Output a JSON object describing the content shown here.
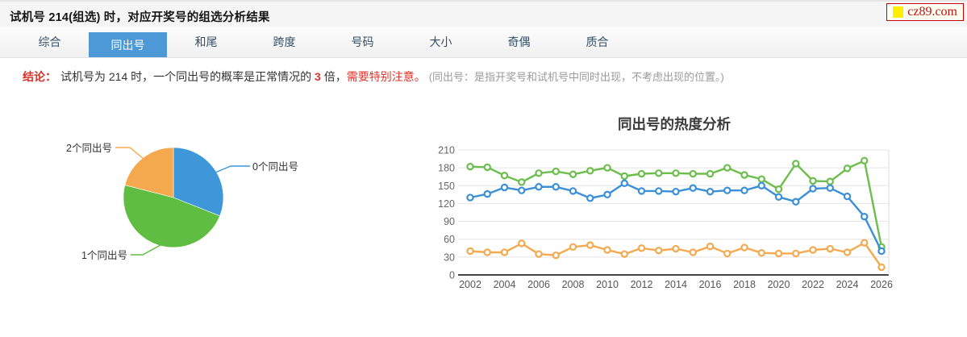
{
  "page": {
    "title": "试机号 214(组选) 时，对应开奖号的组选分析结果"
  },
  "logo": {
    "text": "cz89.com",
    "square_color": "#ffee00",
    "border_color": "#c40000",
    "text_color": "#c01111"
  },
  "tabs": {
    "active_color": "#4d99d8",
    "items": [
      {
        "label": "综合",
        "active": false
      },
      {
        "label": "同出号",
        "active": true
      },
      {
        "label": "和尾",
        "active": false
      },
      {
        "label": "跨度",
        "active": false
      },
      {
        "label": "号码",
        "active": false
      },
      {
        "label": "大小",
        "active": false
      },
      {
        "label": "奇偶",
        "active": false
      },
      {
        "label": "质合",
        "active": false
      }
    ]
  },
  "conclusion": {
    "prefix": "结论：",
    "part1": "试机号为 214 时，一个同出号的概率是正常情况的 ",
    "highlight_number": "3",
    "part2": " 倍，",
    "warning": "需要特别注意。",
    "note": "(同出号：是指开奖号和试机号中同时出现，不考虑出现的位置。)"
  },
  "chart_data": [
    {
      "type": "pie",
      "title": "",
      "labels": [
        "0个同出号",
        "1个同出号",
        "2个同出号"
      ],
      "values": [
        31,
        48,
        21
      ],
      "value_unit": "percent_estimated_from_arc_angles",
      "colors": [
        "#3d97d8",
        "#5fbe41",
        "#f5a94f"
      ],
      "legend_position": "callout-labels"
    },
    {
      "type": "line",
      "title": "同出号的热度分析",
      "x": [
        2002,
        2003,
        2004,
        2005,
        2006,
        2007,
        2008,
        2009,
        2010,
        2011,
        2012,
        2013,
        2014,
        2015,
        2016,
        2017,
        2018,
        2019,
        2020,
        2021,
        2022,
        2023,
        2024,
        2025,
        2026
      ],
      "x_tick_labels": [
        "2002",
        "2004",
        "2006",
        "2008",
        "2010",
        "2012",
        "2014",
        "2016",
        "2018",
        "2020",
        "2022",
        "2024",
        "2026"
      ],
      "y_ticks": [
        0,
        30,
        60,
        90,
        120,
        150,
        180,
        210
      ],
      "ylim": [
        0,
        210
      ],
      "grid": true,
      "legend": "none",
      "series": [
        {
          "name": "green-series",
          "color": "#6cbe4c",
          "values": [
            182,
            181,
            167,
            156,
            171,
            174,
            169,
            175,
            180,
            166,
            170,
            171,
            171,
            170,
            170,
            180,
            168,
            161,
            144,
            187,
            158,
            157,
            179,
            192,
            47
          ]
        },
        {
          "name": "blue-series",
          "color": "#3a8fd6",
          "values": [
            130,
            136,
            147,
            142,
            148,
            148,
            141,
            129,
            135,
            154,
            141,
            141,
            140,
            146,
            140,
            142,
            142,
            150,
            131,
            123,
            145,
            146,
            132,
            98,
            40
          ]
        },
        {
          "name": "orange-series",
          "color": "#f5a94f",
          "values": [
            40,
            38,
            38,
            53,
            35,
            33,
            47,
            50,
            42,
            35,
            45,
            41,
            44,
            38,
            48,
            36,
            46,
            37,
            36,
            36,
            42,
            44,
            38,
            54,
            13
          ]
        }
      ]
    }
  ]
}
